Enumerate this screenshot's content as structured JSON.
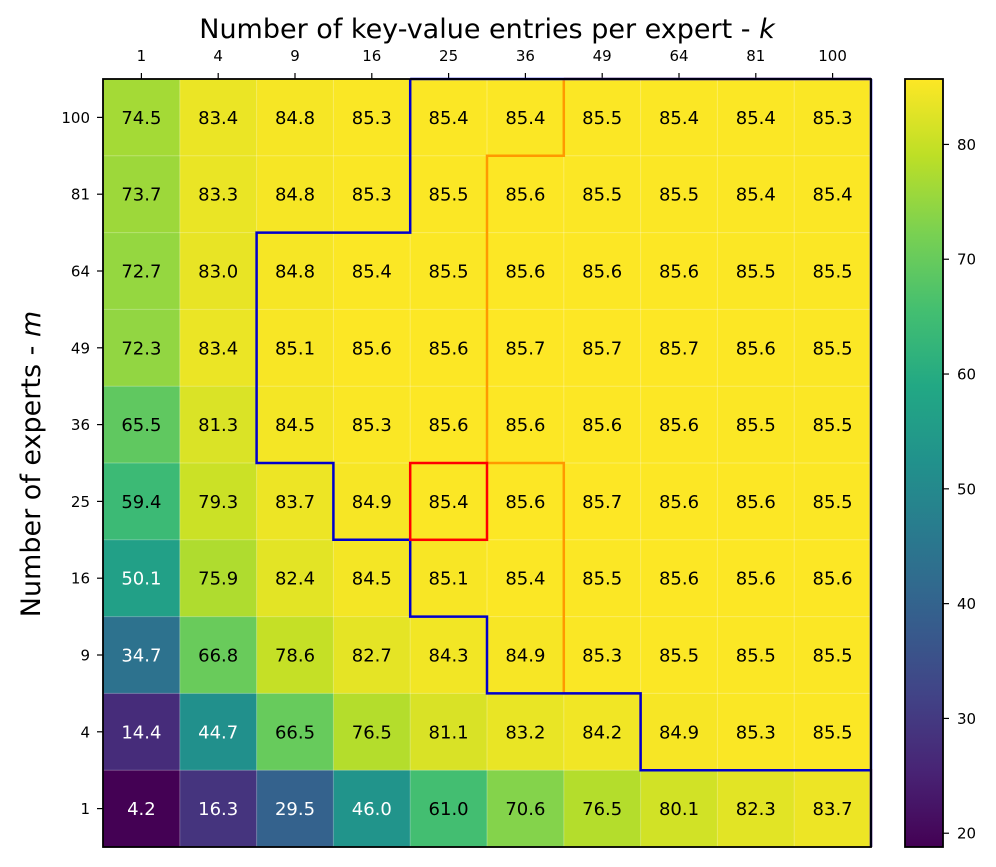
{
  "chart_data": {
    "type": "heatmap",
    "title": "Number of key-value entries per expert - ",
    "title_var": "k",
    "ylabel": "Number of experts - ",
    "ylabel_var": "m",
    "x": [
      "1",
      "4",
      "9",
      "16",
      "25",
      "36",
      "49",
      "64",
      "81",
      "100"
    ],
    "y": [
      "100",
      "81",
      "64",
      "49",
      "36",
      "25",
      "16",
      "9",
      "4",
      "1"
    ],
    "values": [
      [
        74.5,
        83.4,
        84.8,
        85.3,
        85.4,
        85.4,
        85.5,
        85.4,
        85.4,
        85.3
      ],
      [
        73.7,
        83.3,
        84.8,
        85.3,
        85.5,
        85.6,
        85.5,
        85.5,
        85.4,
        85.4
      ],
      [
        72.7,
        83.0,
        84.8,
        85.4,
        85.5,
        85.6,
        85.6,
        85.6,
        85.5,
        85.5
      ],
      [
        72.3,
        83.4,
        85.1,
        85.6,
        85.6,
        85.7,
        85.7,
        85.7,
        85.6,
        85.5
      ],
      [
        65.5,
        81.3,
        84.5,
        85.3,
        85.6,
        85.6,
        85.6,
        85.6,
        85.5,
        85.5
      ],
      [
        59.4,
        79.3,
        83.7,
        84.9,
        85.4,
        85.6,
        85.7,
        85.6,
        85.6,
        85.5
      ],
      [
        50.1,
        75.9,
        82.4,
        84.5,
        85.1,
        85.4,
        85.5,
        85.6,
        85.6,
        85.6
      ],
      [
        34.7,
        66.8,
        78.6,
        82.7,
        84.3,
        84.9,
        85.3,
        85.5,
        85.5,
        85.5
      ],
      [
        14.4,
        44.7,
        66.5,
        76.5,
        81.1,
        83.2,
        84.2,
        84.9,
        85.3,
        85.5
      ],
      [
        4.2,
        16.3,
        29.5,
        46.0,
        61.0,
        70.6,
        76.5,
        80.1,
        82.3,
        83.7
      ]
    ],
    "colorscale": "viridis",
    "color_range": [
      20,
      85
    ],
    "colorbar_ticks": [
      20,
      30,
      40,
      50,
      60,
      70,
      80
    ],
    "highlight_cell": {
      "x": "25",
      "y": "25",
      "color": "#ff0000"
    },
    "blue_boundary_color": "#0000cc",
    "orange_boundary_color": "#ff9900",
    "blue_boundary_cols": [
      4,
      4,
      2,
      2,
      2,
      3,
      4,
      5,
      7,
      10
    ],
    "orange_boundary_cols": [
      6,
      5,
      5,
      5,
      5,
      6,
      6,
      6,
      7,
      10
    ],
    "grid": true
  }
}
